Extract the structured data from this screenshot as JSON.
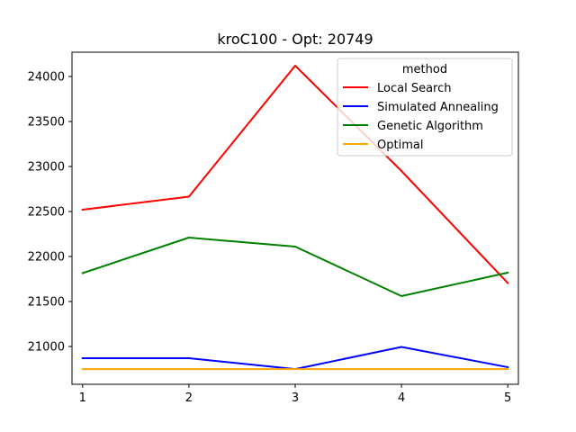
{
  "chart_data": {
    "type": "line",
    "title": "kroC100 - Opt: 20749",
    "xlabel": "",
    "ylabel": "",
    "x": [
      1,
      2,
      3,
      4,
      5
    ],
    "x_ticks": [
      "1",
      "2",
      "3",
      "4",
      "5"
    ],
    "y_ticks": [
      "21000",
      "21500",
      "22000",
      "22500",
      "23000",
      "23500",
      "24000"
    ],
    "y_tick_values": [
      21000,
      21500,
      22000,
      22500,
      23000,
      23500,
      24000
    ],
    "xlim": [
      0.9,
      5.1
    ],
    "ylim": [
      20580,
      24270
    ],
    "grid": false,
    "legend": {
      "title": "method",
      "placement": "top-right"
    },
    "series": [
      {
        "name": "Local Search",
        "color": "#ff0000",
        "values": [
          22520,
          22665,
          24120,
          22950,
          21705
        ]
      },
      {
        "name": "Simulated Annealing",
        "color": "#0000ff",
        "values": [
          20870,
          20870,
          20749,
          20995,
          20770
        ]
      },
      {
        "name": "Genetic Algorithm",
        "color": "#008000",
        "values": [
          21815,
          22210,
          22110,
          21560,
          21820
        ]
      },
      {
        "name": "Optimal",
        "color": "#ffa500",
        "values": [
          20749,
          20749,
          20749,
          20749,
          20749
        ]
      }
    ]
  }
}
